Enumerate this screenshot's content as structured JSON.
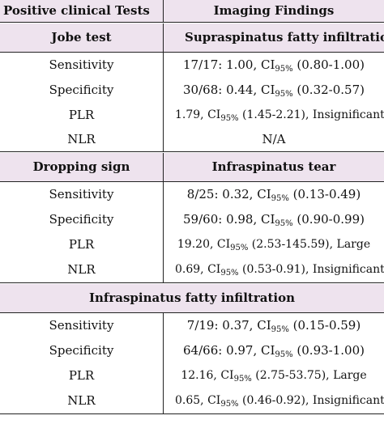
{
  "header": {
    "col1": "Positive clinical Tests",
    "col2": "Imaging Findings"
  },
  "sections": [
    {
      "left_title": "Jobe test",
      "right_title": "Supraspinatus fatty infiltration",
      "rows": [
        {
          "label": "Sensitivity",
          "value": "17/17: 1.00, CI",
          "sub": "95%",
          "rest": " (0.80-1.00)"
        },
        {
          "label": "Specificity",
          "value": "30/68: 0.44, CI",
          "sub": "95%",
          "rest": " (0.32-0.57)"
        },
        {
          "label": "PLR",
          "value": "1.79, CI",
          "sub": "95%",
          "rest": " (1.45-2.21), Insignificant"
        },
        {
          "label": "NLR",
          "value": "N/A",
          "sub": "",
          "rest": ""
        }
      ]
    },
    {
      "left_title": "Dropping sign",
      "right_title": "Infraspinatus tear",
      "rows": [
        {
          "label": "Sensitivity",
          "value": "8/25: 0.32, CI",
          "sub": "95%",
          "rest": " (0.13-0.49)"
        },
        {
          "label": "Specificity",
          "value": "59/60: 0.98, CI",
          "sub": "95%",
          "rest": " (0.90-0.99)"
        },
        {
          "label": "PLR",
          "value": "19.20, CI",
          "sub": "95%",
          "rest": " (2.53-145.59), Large"
        },
        {
          "label": "NLR",
          "value": "0.69, CI",
          "sub": "95%",
          "rest": " (0.53-0.91), Insignificant"
        }
      ]
    },
    {
      "full_title": "Infraspinatus fatty infiltration",
      "rows": [
        {
          "label": "Sensitivity",
          "value": "7/19: 0.37, CI",
          "sub": "95%",
          "rest": " (0.15-0.59)"
        },
        {
          "label": "Specificity",
          "value": "64/66: 0.97, CI",
          "sub": "95%",
          "rest": " (0.93-1.00)"
        },
        {
          "label": "PLR",
          "value": "12.16, CI",
          "sub": "95%",
          "rest": " (2.75-53.75), Large"
        },
        {
          "label": "NLR",
          "value": "0.65, CI",
          "sub": "95%",
          "rest": " (0.46-0.92), Insignificant"
        }
      ]
    }
  ]
}
